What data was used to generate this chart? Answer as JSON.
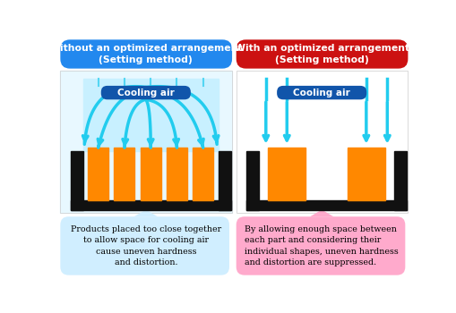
{
  "bg_color": "#ffffff",
  "left_title": "Without an optimized arrangement\n(Setting method)",
  "right_title": "With an optimized arrangement\n(Setting method)",
  "left_title_bg": "#2288ee",
  "right_title_bg": "#cc1111",
  "title_text_color": "#ffffff",
  "cooling_air_label": "Cooling air",
  "cooling_air_bg": "#1155aa",
  "cooling_air_text": "#ffffff",
  "bar_color": "#ff8800",
  "tray_color": "#111111",
  "arrow_color": "#22ccee",
  "arrow_fill": "#aaeeff",
  "left_bg": "#ddf4ff",
  "right_bg": "#ffffff",
  "left_caption_bg": "#d0eeff",
  "right_caption_bg": "#ffaacc",
  "left_caption": "Products placed too close together\nto allow space for cooling air\ncause uneven hardness\nand distortion.",
  "right_caption": "By allowing enough space between\neach part and considering their\nindividual shapes, uneven hardness\nand distortion are suppressed.",
  "caption_text_color": "#000000",
  "divider_color": "#aaaaaa"
}
